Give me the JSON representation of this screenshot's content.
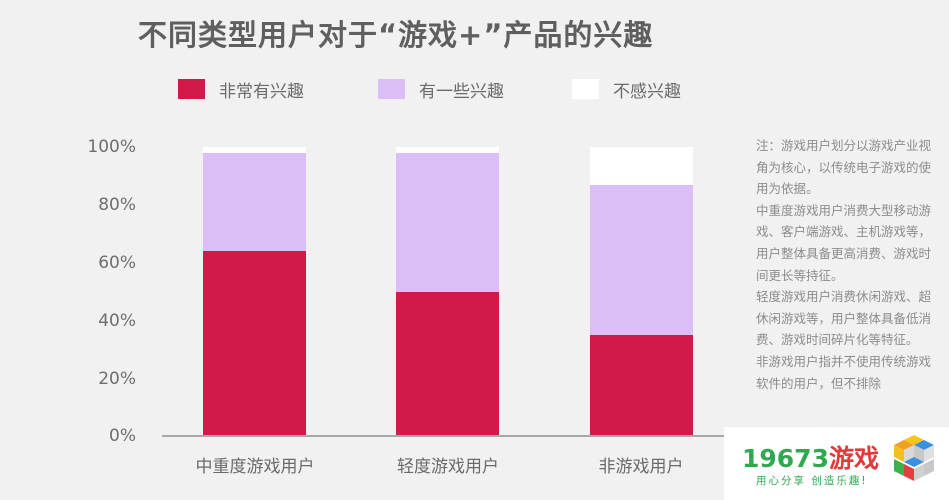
{
  "title": "不同类型用户对于“游戏+”产品的兴趣",
  "legend": [
    {
      "label": "非常有兴趣",
      "color": "#d21a4a"
    },
    {
      "label": "有一些兴趣",
      "color": "#dbbdf8"
    },
    {
      "label": "不感兴趣",
      "color": "#ffffff"
    }
  ],
  "y_ticks": [
    "100%",
    "80%",
    "60%",
    "40%",
    "20%",
    "0%"
  ],
  "x_labels": [
    "中重度游戏用户",
    "轻度游戏用户",
    "非游戏用户"
  ],
  "note": [
    "注：游戏用户划分以游戏产业视角为核心，以传统电子游戏的使用为依据。",
    "中重度游戏用户消费大型移动游戏、客户端游戏、主机游戏等，用户整体具备更高消费、游戏时间更长等持征。",
    "轻度游戏用户消费休闲游戏、超休闲游戏等，用户整体具备低消费、游戏时间碎片化等特征。",
    "非游戏用户指并不使用传统游戏软件的用户，但不排除"
  ],
  "watermark": {
    "number": "19673",
    "name": "游戏",
    "slogan": "用心分享 创造乐趣!"
  },
  "chart_data": {
    "type": "bar",
    "stacked": true,
    "title": "不同类型用户对于“游戏+”产品的兴趣",
    "categories": [
      "中重度游戏用户",
      "轻度游戏用户",
      "非游戏用户"
    ],
    "series": [
      {
        "name": "非常有兴趣",
        "color": "#d21a4a",
        "values": [
          64,
          50,
          35
        ]
      },
      {
        "name": "有一些兴趣",
        "color": "#dbbdf8",
        "values": [
          34,
          48,
          52
        ]
      },
      {
        "name": "不感兴趣",
        "color": "#ffffff",
        "values": [
          2,
          2,
          13
        ]
      }
    ],
    "xlabel": "",
    "ylabel": "",
    "ylim": [
      0,
      100
    ],
    "y_ticks": [
      "0%",
      "20%",
      "40%",
      "60%",
      "80%",
      "100%"
    ],
    "grid": false,
    "legend_position": "top"
  }
}
